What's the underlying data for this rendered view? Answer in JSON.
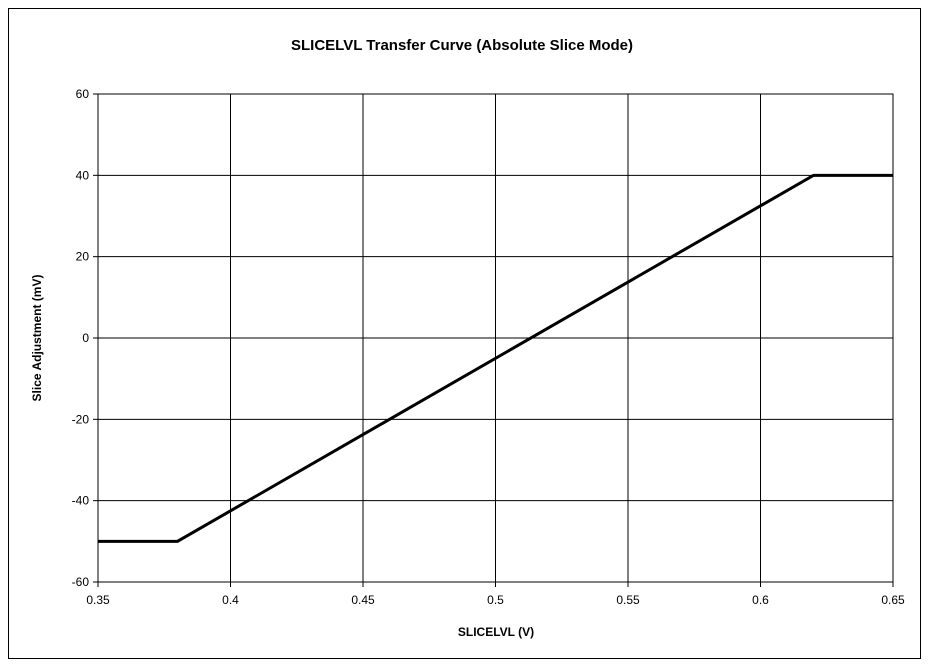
{
  "chart_data": {
    "type": "line",
    "title": "SLICELVL Transfer Curve (Absolute Slice Mode)",
    "xlabel": "SLICELVL (V)",
    "ylabel": "Slice Adjustment (mV)",
    "xlim": [
      0.35,
      0.65
    ],
    "ylim": [
      -60,
      60
    ],
    "x_ticks": [
      "0.35",
      "0.4",
      "0.45",
      "0.5",
      "0.55",
      "0.6",
      "0.65"
    ],
    "y_ticks": [
      "60",
      "40",
      "20",
      "0",
      "-20",
      "-40",
      "-60"
    ],
    "grid": true,
    "legend": "none",
    "series": [
      {
        "color": "#000000",
        "points": [
          [
            0.35,
            -50
          ],
          [
            0.38,
            -50
          ],
          [
            0.62,
            40
          ],
          [
            0.65,
            40
          ]
        ]
      }
    ]
  }
}
